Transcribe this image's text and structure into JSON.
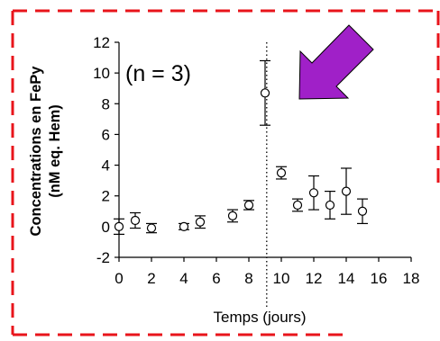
{
  "frame_color": "#e8141b",
  "arrow_color": "#a020c8",
  "arrow_icon": "arrow-down-left",
  "chart_data": {
    "type": "scatter",
    "title": "",
    "annotation": "(n = 3)",
    "xlabel": "Temps (jours)",
    "ylabel_line1": "Concentrations en FePy",
    "ylabel_line2": "(nM eq. Hem)",
    "xlim": [
      0,
      18
    ],
    "ylim": [
      -2,
      12
    ],
    "xticks": [
      "0",
      "2",
      "4",
      "6",
      "8",
      "10",
      "12",
      "14",
      "16",
      "18"
    ],
    "yticks": [
      "-2",
      "0",
      "2",
      "4",
      "6",
      "8",
      "10",
      "12"
    ],
    "vline_x": 9.1,
    "grid": false,
    "marker": "open-circle",
    "points": [
      {
        "x": 0,
        "y": 0.0,
        "err": 0.5
      },
      {
        "x": 1,
        "y": 0.4,
        "err": 0.5
      },
      {
        "x": 2,
        "y": -0.1,
        "err": 0.3
      },
      {
        "x": 4,
        "y": 0.0,
        "err": 0.2
      },
      {
        "x": 5,
        "y": 0.3,
        "err": 0.4
      },
      {
        "x": 7,
        "y": 0.7,
        "err": 0.4
      },
      {
        "x": 8,
        "y": 1.4,
        "err": 0.3
      },
      {
        "x": 9,
        "y": 8.7,
        "err": 2.1
      },
      {
        "x": 10,
        "y": 3.5,
        "err": 0.4
      },
      {
        "x": 11,
        "y": 1.4,
        "err": 0.4
      },
      {
        "x": 12,
        "y": 2.2,
        "err": 1.1
      },
      {
        "x": 13,
        "y": 1.4,
        "err": 0.9
      },
      {
        "x": 14,
        "y": 2.3,
        "err": 1.5
      },
      {
        "x": 15,
        "y": 1.0,
        "err": 0.8
      }
    ]
  }
}
